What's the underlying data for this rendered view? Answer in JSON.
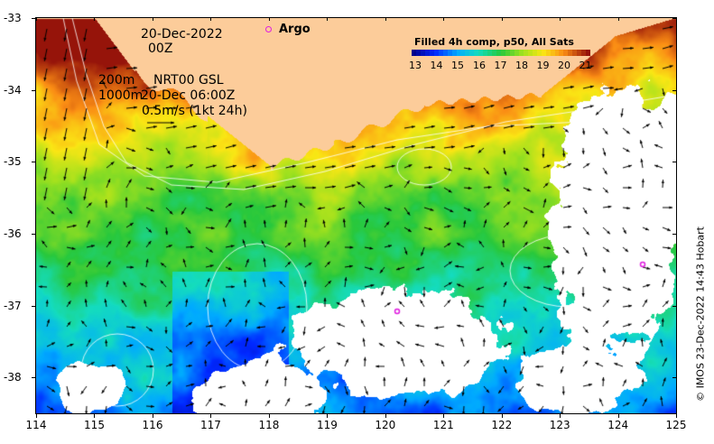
{
  "map": {
    "date_line1": "20-Dec-2022",
    "date_line2": "00Z",
    "depth_line1": "200m",
    "depth_line2": "1000m",
    "product_line1": "NRT00 GSL",
    "product_line2": "20-Dec 06:00Z",
    "scale_text": "0.5m/s (1kt 24h)",
    "argo_label": "Argo",
    "colorbar_title": "Filled 4h comp, p50, All Sats",
    "colorbar_ticks": [
      "13",
      "14",
      "15",
      "16",
      "17",
      "18",
      "19",
      "20",
      "21"
    ],
    "x_ticks": [
      "114",
      "115",
      "116",
      "117",
      "118",
      "119",
      "120",
      "121",
      "122",
      "123",
      "124",
      "125"
    ],
    "y_ticks": [
      "-33",
      "-34",
      "-35",
      "-36",
      "-37",
      "-38"
    ],
    "credit": "© IMOS 23-Dec-2022 14:43 Hobart",
    "colors": {
      "land": "#fccc9a",
      "frame": "#000000",
      "argo": "#e020e0",
      "contour": "#ffffff"
    }
  }
}
